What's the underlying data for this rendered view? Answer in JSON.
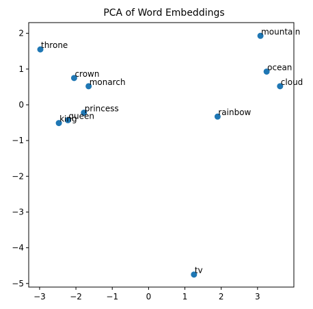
{
  "chart_data": {
    "type": "scatter",
    "title": "PCA of Word Embeddings",
    "xlabel": "",
    "ylabel": "",
    "xlim": [
      -3.3,
      4.0
    ],
    "ylim": [
      -5.1,
      2.3
    ],
    "xticks": [
      -3,
      -2,
      -1,
      0,
      1,
      2,
      3
    ],
    "yticks": [
      -5,
      -4,
      -3,
      -2,
      -1,
      0,
      1,
      2
    ],
    "grid": false,
    "marker_color": "#1f77b4",
    "points": [
      {
        "label": "throne",
        "x": -2.98,
        "y": 1.55
      },
      {
        "label": "crown",
        "x": -2.05,
        "y": 0.75
      },
      {
        "label": "monarch",
        "x": -1.65,
        "y": 0.52
      },
      {
        "label": "princess",
        "x": -1.78,
        "y": -0.22
      },
      {
        "label": "queen",
        "x": -2.22,
        "y": -0.43
      },
      {
        "label": "king",
        "x": -2.47,
        "y": -0.51
      },
      {
        "label": "mountain",
        "x": 3.08,
        "y": 1.93
      },
      {
        "label": "ocean",
        "x": 3.25,
        "y": 0.93
      },
      {
        "label": "cloud",
        "x": 3.62,
        "y": 0.52
      },
      {
        "label": "rainbow",
        "x": 1.9,
        "y": -0.33
      },
      {
        "label": "tv",
        "x": 1.25,
        "y": -4.75
      }
    ]
  }
}
